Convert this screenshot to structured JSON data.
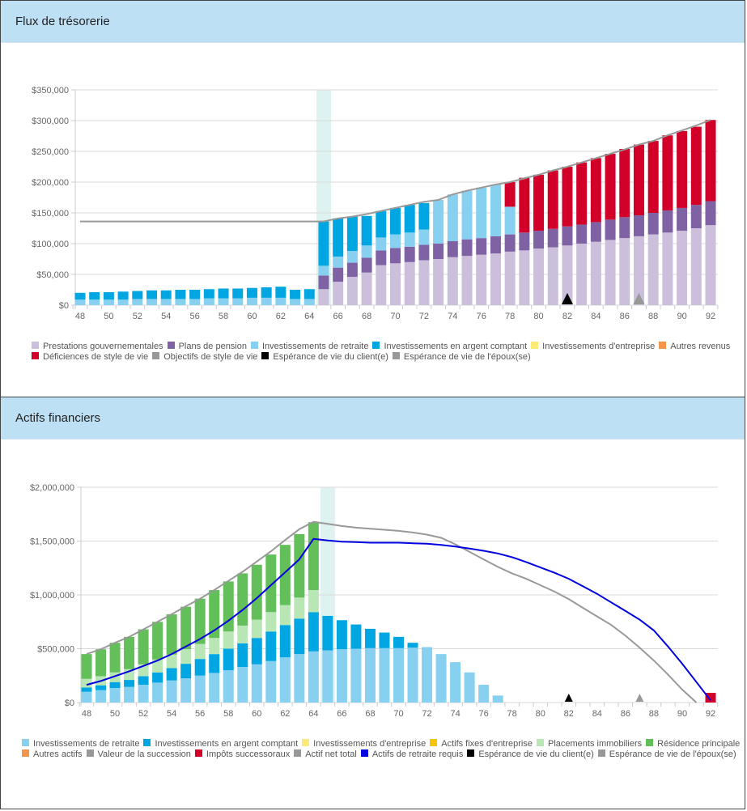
{
  "panels": [
    {
      "title": "Flux de trésorerie"
    },
    {
      "title": "Actifs financiers"
    }
  ],
  "chart_data": [
    {
      "type": "bar",
      "stacked": true,
      "title": "Flux de trésorerie",
      "xlabel": "",
      "ylabel": "",
      "ylim": [
        0,
        350000
      ],
      "yticks": [
        "$0",
        "$50,000",
        "$100,000",
        "$150,000",
        "$200,000",
        "$250,000",
        "$300,000",
        "$350,000"
      ],
      "ytick_values": [
        0,
        50000,
        100000,
        150000,
        200000,
        250000,
        300000,
        350000
      ],
      "xticks": [
        "48",
        "50",
        "52",
        "54",
        "56",
        "58",
        "60",
        "62",
        "64",
        "66",
        "68",
        "70",
        "72",
        "74",
        "76",
        "78",
        "80",
        "82",
        "84",
        "86",
        "88",
        "90",
        "92"
      ],
      "x": [
        48,
        49,
        50,
        51,
        52,
        53,
        54,
        55,
        56,
        57,
        58,
        59,
        60,
        61,
        62,
        63,
        64,
        65,
        66,
        67,
        68,
        69,
        70,
        71,
        72,
        73,
        74,
        75,
        76,
        77,
        78,
        79,
        80,
        81,
        82,
        83,
        84,
        85,
        86,
        87,
        88,
        89,
        90,
        91,
        92
      ],
      "highlight_age": 65,
      "series": [
        {
          "name": "Prestations gouvernementales",
          "color": "#cbbfdb",
          "values": [
            0,
            0,
            0,
            0,
            0,
            0,
            0,
            0,
            0,
            0,
            0,
            0,
            0,
            0,
            0,
            0,
            0,
            26000,
            38000,
            46000,
            53000,
            65000,
            68000,
            70000,
            73000,
            75000,
            78000,
            80000,
            82000,
            84000,
            87000,
            89000,
            92000,
            94000,
            97000,
            100000,
            103000,
            106000,
            109000,
            112000,
            115000,
            118000,
            121000,
            125000,
            130000
          ]
        },
        {
          "name": "Plans de pension",
          "color": "#7f62a3",
          "values": [
            0,
            0,
            0,
            0,
            0,
            0,
            0,
            0,
            0,
            0,
            0,
            0,
            0,
            0,
            0,
            0,
            0,
            22000,
            23000,
            23000,
            24000,
            24000,
            25000,
            25000,
            25000,
            25000,
            26000,
            27000,
            27000,
            28000,
            28000,
            29000,
            29000,
            30000,
            31000,
            31000,
            32000,
            33000,
            34000,
            34000,
            35000,
            36000,
            37000,
            38000,
            39000
          ]
        },
        {
          "name": "Investissements de retraite",
          "color": "#87d0ef",
          "values": [
            9000,
            9000,
            9000,
            9000,
            10000,
            10000,
            10000,
            10000,
            10000,
            11000,
            11000,
            11000,
            12000,
            12000,
            12000,
            10000,
            10000,
            16000,
            18000,
            19000,
            20000,
            21000,
            22000,
            23000,
            25000,
            71000,
            76000,
            79000,
            82000,
            84000,
            45000,
            0,
            0,
            0,
            0,
            0,
            0,
            0,
            0,
            0,
            0,
            0,
            0,
            0,
            0
          ]
        },
        {
          "name": "Investissements en argent comptant",
          "color": "#00a6e2",
          "values": [
            11000,
            12000,
            12000,
            13000,
            13000,
            14000,
            14000,
            15000,
            15000,
            15000,
            16000,
            16000,
            16000,
            17000,
            18000,
            15000,
            16000,
            72000,
            62000,
            56000,
            48000,
            43000,
            43000,
            45000,
            43000,
            0,
            0,
            0,
            0,
            0,
            0,
            0,
            0,
            0,
            0,
            0,
            0,
            0,
            0,
            0,
            0,
            0,
            0,
            0,
            0
          ]
        },
        {
          "name": "Investissements d'entreprise",
          "color": "#fde978",
          "values": []
        },
        {
          "name": "Autres revenus",
          "color": "#f4954a",
          "values": []
        },
        {
          "name": "Déficiences de style de vie",
          "color": "#d20029",
          "values": [
            0,
            0,
            0,
            0,
            0,
            0,
            0,
            0,
            0,
            0,
            0,
            0,
            0,
            0,
            0,
            0,
            0,
            0,
            0,
            0,
            0,
            0,
            0,
            0,
            0,
            0,
            0,
            0,
            0,
            0,
            40000,
            89000,
            91000,
            95000,
            97000,
            101000,
            104000,
            107000,
            111000,
            115000,
            117000,
            122000,
            125000,
            127000,
            132000
          ]
        }
      ],
      "lines": [
        {
          "name": "Objectifs de style de vie",
          "color": "#999999",
          "values": [
            136000,
            136000,
            136000,
            136000,
            136000,
            136000,
            136000,
            136000,
            136000,
            136000,
            136000,
            136000,
            136000,
            136000,
            136000,
            136000,
            136000,
            136000,
            141000,
            144000,
            148000,
            153000,
            158000,
            163000,
            168000,
            171000,
            180000,
            186000,
            191000,
            196000,
            200000,
            206000,
            212000,
            219000,
            225000,
            232000,
            239000,
            246000,
            253000,
            261000,
            267000,
            276000,
            284000,
            292000,
            301000
          ]
        }
      ],
      "markers": [
        {
          "name": "Espérance de vie du client(e)",
          "color": "#000000",
          "age": 82
        },
        {
          "name": "Espérance de vie de l'époux(se)",
          "color": "#999999",
          "age": 87
        }
      ],
      "legend": {
        "placement": "bottom",
        "rows": [
          [
            {
              "label": "Prestations gouvernementales",
              "color": "#cbbfdb"
            },
            {
              "label": "Plans de pension",
              "color": "#7f62a3"
            },
            {
              "label": "Investissements de retraite",
              "color": "#87d0ef"
            },
            {
              "label": "Investissements en argent comptant",
              "color": "#00a6e2"
            },
            {
              "label": "Investissements d'entreprise",
              "color": "#fde978"
            },
            {
              "label": "Autres revenus",
              "color": "#f4954a"
            }
          ],
          [
            {
              "label": "Déficiences de style de vie",
              "color": "#d20029"
            },
            {
              "label": "Objectifs de style de vie",
              "color": "#999999"
            },
            {
              "label": "Espérance de vie du client(e)",
              "color": "#000000"
            },
            {
              "label": "Espérance de vie de l'époux(se)",
              "color": "#999999"
            }
          ]
        ]
      }
    },
    {
      "type": "bar",
      "stacked": true,
      "title": "Actifs financiers",
      "xlabel": "",
      "ylabel": "",
      "ylim": [
        0,
        2000000
      ],
      "yticks": [
        "$0",
        "$500,000",
        "$1,000,000",
        "$1,500,000",
        "$2,000,000"
      ],
      "ytick_values": [
        0,
        500000,
        1000000,
        1500000,
        2000000
      ],
      "xticks": [
        "48",
        "50",
        "52",
        "54",
        "56",
        "58",
        "60",
        "62",
        "64",
        "66",
        "68",
        "70",
        "72",
        "74",
        "76",
        "78",
        "80",
        "82",
        "84",
        "86",
        "88",
        "90",
        "92"
      ],
      "x": [
        48,
        49,
        50,
        51,
        52,
        53,
        54,
        55,
        56,
        57,
        58,
        59,
        60,
        61,
        62,
        63,
        64,
        65,
        66,
        67,
        68,
        69,
        70,
        71,
        72,
        73,
        74,
        75,
        76,
        77,
        78,
        79,
        80,
        81,
        82,
        83,
        84,
        85,
        86,
        87,
        88,
        89,
        90,
        91,
        92
      ],
      "highlight_age": 65,
      "series": [
        {
          "name": "Investissements de retraite",
          "color": "#87d0ef",
          "values": [
            100000,
            115000,
            135000,
            145000,
            165000,
            185000,
            205000,
            225000,
            250000,
            275000,
            300000,
            330000,
            355000,
            385000,
            420000,
            450000,
            475000,
            485000,
            495000,
            500000,
            505000,
            505000,
            505000,
            510000,
            515000,
            450000,
            375000,
            280000,
            165000,
            65000,
            0,
            0,
            0,
            0,
            0,
            0,
            0,
            0,
            0,
            0,
            0,
            0,
            0,
            0,
            0
          ]
        },
        {
          "name": "Investissements en argent comptant",
          "color": "#00a6e2",
          "values": [
            40000,
            45000,
            55000,
            65000,
            80000,
            95000,
            115000,
            135000,
            155000,
            175000,
            200000,
            220000,
            245000,
            275000,
            300000,
            330000,
            365000,
            320000,
            270000,
            225000,
            180000,
            145000,
            105000,
            45000,
            0,
            0,
            0,
            0,
            0,
            0,
            0,
            0,
            0,
            0,
            0,
            0,
            0,
            0,
            0,
            0,
            0,
            0,
            0,
            0,
            0
          ]
        },
        {
          "name": "Investissements d'entreprise",
          "color": "#fde978",
          "values": []
        },
        {
          "name": "Actifs fixes d'entreprise",
          "color": "#f8c400",
          "values": []
        },
        {
          "name": "Placements immobiliers",
          "color": "#b8e6b5",
          "values": [
            80000,
            85000,
            90000,
            100000,
            110000,
            120000,
            125000,
            135000,
            140000,
            150000,
            160000,
            165000,
            170000,
            180000,
            185000,
            195000,
            205000,
            0,
            0,
            0,
            0,
            0,
            0,
            0,
            0,
            0,
            0,
            0,
            0,
            0,
            0,
            0,
            0,
            0,
            0,
            0,
            0,
            0,
            0,
            0,
            0,
            0,
            0,
            0,
            0
          ]
        },
        {
          "name": "Résidence principale",
          "color": "#62bf59",
          "values": [
            230000,
            250000,
            275000,
            300000,
            325000,
            350000,
            375000,
            395000,
            420000,
            445000,
            465000,
            485000,
            510000,
            535000,
            560000,
            590000,
            630000,
            0,
            0,
            0,
            0,
            0,
            0,
            0,
            0,
            0,
            0,
            0,
            0,
            0,
            0,
            0,
            0,
            0,
            0,
            0,
            0,
            0,
            0,
            0,
            0,
            0,
            0,
            0,
            0
          ]
        },
        {
          "name": "Autres actifs",
          "color": "#f4954a",
          "values": []
        },
        {
          "name": "Valeur de la succession",
          "color": "#999999",
          "values": []
        },
        {
          "name": "Impôts successoraux",
          "color": "#d20029",
          "values": [
            0,
            0,
            0,
            0,
            0,
            0,
            0,
            0,
            0,
            0,
            0,
            0,
            0,
            0,
            0,
            0,
            0,
            0,
            0,
            0,
            0,
            0,
            0,
            0,
            0,
            0,
            0,
            0,
            0,
            0,
            0,
            0,
            0,
            0,
            0,
            0,
            0,
            0,
            0,
            0,
            0,
            0,
            0,
            0,
            90000
          ]
        }
      ],
      "lines": [
        {
          "name": "Actif net total",
          "color": "#999999",
          "values": [
            450000,
            495000,
            555000,
            610000,
            680000,
            750000,
            820000,
            895000,
            965000,
            1045000,
            1130000,
            1215000,
            1310000,
            1405000,
            1510000,
            1610000,
            1680000,
            1660000,
            1640000,
            1625000,
            1615000,
            1605000,
            1595000,
            1580000,
            1560000,
            1530000,
            1470000,
            1400000,
            1330000,
            1260000,
            1200000,
            1150000,
            1090000,
            1030000,
            960000,
            880000,
            800000,
            720000,
            620000,
            510000,
            390000,
            260000,
            120000,
            -20000,
            null
          ]
        },
        {
          "name": "Actifs de retraite requis",
          "color": "#0000e0",
          "values": [
            165000,
            200000,
            245000,
            290000,
            340000,
            390000,
            450000,
            520000,
            590000,
            670000,
            760000,
            860000,
            970000,
            1090000,
            1210000,
            1330000,
            1520000,
            1505000,
            1495000,
            1490000,
            1485000,
            1485000,
            1485000,
            1480000,
            1475000,
            1465000,
            1450000,
            1430000,
            1410000,
            1385000,
            1350000,
            1305000,
            1255000,
            1205000,
            1150000,
            1080000,
            1010000,
            930000,
            850000,
            770000,
            670000,
            520000,
            360000,
            190000,
            20000
          ]
        }
      ],
      "markers": [
        {
          "name": "Espérance de vie du client(e)",
          "color": "#000000",
          "age": 82
        },
        {
          "name": "Espérance de vie de l'époux(se)",
          "color": "#999999",
          "age": 87
        }
      ],
      "legend": {
        "placement": "bottom",
        "rows": [
          [
            {
              "label": "Investissements de retraite",
              "color": "#87d0ef"
            },
            {
              "label": "Investissements en argent comptant",
              "color": "#00a6e2"
            },
            {
              "label": "Investissements d'entreprise",
              "color": "#fde978"
            },
            {
              "label": "Actifs fixes d'entreprise",
              "color": "#f8c400"
            },
            {
              "label": "Placements immobiliers",
              "color": "#b8e6b5"
            },
            {
              "label": "Résidence principale",
              "color": "#62bf59"
            }
          ],
          [
            {
              "label": "Autres actifs",
              "color": "#f4954a"
            },
            {
              "label": "Valeur de la succession",
              "color": "#999999"
            },
            {
              "label": "Impôts successoraux",
              "color": "#d20029"
            },
            {
              "label": "Actif net total",
              "color": "#999999"
            },
            {
              "label": "Actifs de retraite requis",
              "color": "#0000e0"
            },
            {
              "label": "Espérance de vie du client(e)",
              "color": "#000000"
            },
            {
              "label": "Espérance de vie de l'époux(se)",
              "color": "#999999"
            }
          ]
        ]
      }
    }
  ]
}
